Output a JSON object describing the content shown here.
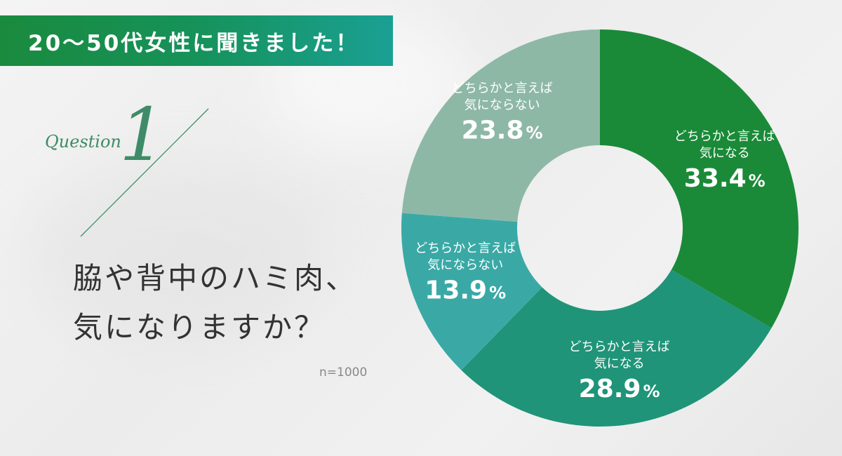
{
  "header": {
    "title": "20〜50代女性に聞きました！"
  },
  "question": {
    "label": "Question",
    "number": "1",
    "text_line1": "脇や背中のハミ肉、",
    "text_line2": "気になりますか？"
  },
  "sample_size": "n=1000",
  "colors": {
    "accent": "#3f8b68",
    "banner_start": "#1a8a3e",
    "banner_end": "#1aa094"
  },
  "chart_data": {
    "type": "pie",
    "subtype": "donut",
    "start_angle_deg": 0,
    "direction": "clockwise",
    "unit": "%",
    "slices": [
      {
        "label_line1": "どちらかと言えば",
        "label_line2": "気になる",
        "value": 33.4,
        "value_text": "33.4",
        "color": "#1a8a38"
      },
      {
        "label_line1": "どちらかと言えば",
        "label_line2": "気になる",
        "value": 28.9,
        "value_text": "28.9",
        "color": "#1f9478"
      },
      {
        "label_line1": "どちらかと言えば",
        "label_line2": "気にならない",
        "value": 13.9,
        "value_text": "13.9",
        "color": "#3aa9a6"
      },
      {
        "label_line1": "どちらかと言えば",
        "label_line2": "気にならない",
        "value": 23.8,
        "value_text": "23.8",
        "color": "#8eb8a6"
      }
    ]
  }
}
